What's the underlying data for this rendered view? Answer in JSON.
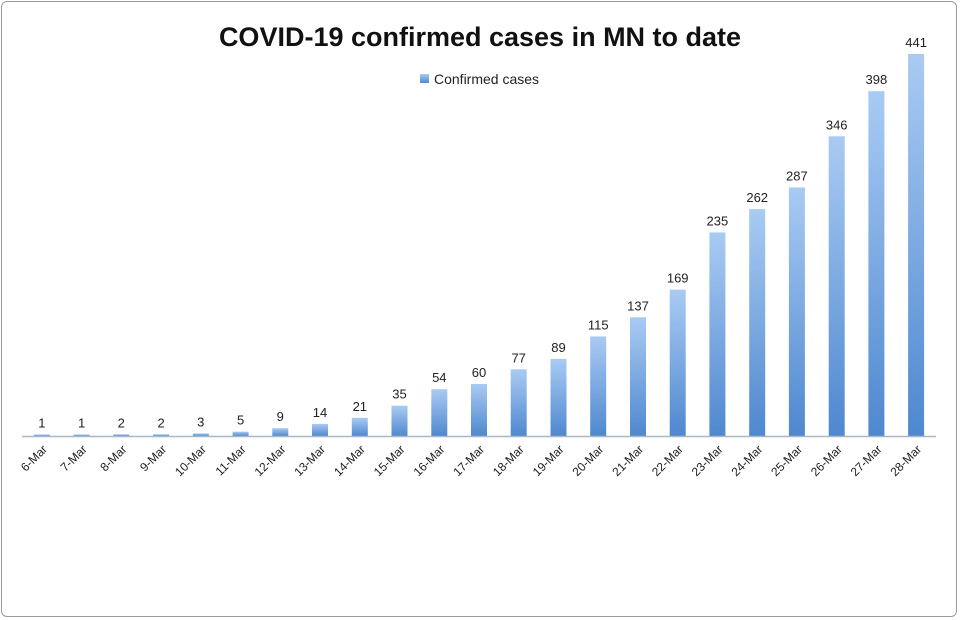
{
  "colors": {
    "bar_top": "#a9cbf3",
    "bar_bottom": "#4f88cf",
    "axis": "#a8b8c8"
  },
  "legend_position": "top-center",
  "chart_data": {
    "type": "bar",
    "title": "COVID-19 confirmed cases in MN to date",
    "xlabel": "",
    "ylabel": "",
    "grid": false,
    "categories": [
      "6-Mar",
      "7-Mar",
      "8-Mar",
      "9-Mar",
      "10-Mar",
      "11-Mar",
      "12-Mar",
      "13-Mar",
      "14-Mar",
      "15-Mar",
      "16-Mar",
      "17-Mar",
      "18-Mar",
      "19-Mar",
      "20-Mar",
      "21-Mar",
      "22-Mar",
      "23-Mar",
      "24-Mar",
      "25-Mar",
      "26-Mar",
      "27-Mar",
      "28-Mar"
    ],
    "series": [
      {
        "name": "Confirmed cases",
        "values": [
          1,
          1,
          2,
          2,
          3,
          5,
          9,
          14,
          21,
          35,
          54,
          60,
          77,
          89,
          115,
          137,
          169,
          235,
          262,
          287,
          346,
          398,
          441
        ]
      }
    ],
    "ylim": [
      0,
      441
    ]
  }
}
